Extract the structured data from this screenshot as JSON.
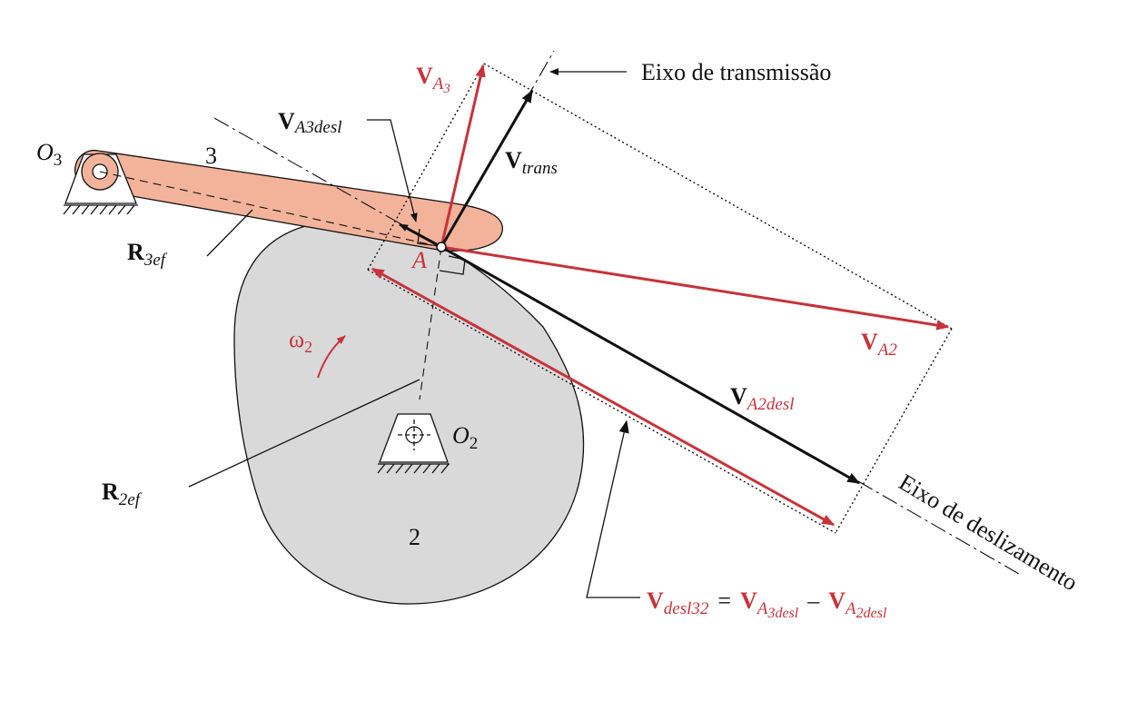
{
  "labels": {
    "va3_main": "V",
    "va3_sub": "A",
    "va3_subsub": "3",
    "eixo_trans": "Eixo de transmissão",
    "va3desl_main": "V",
    "va3desl_sub": "A",
    "va3desl_subsub": "3desl",
    "o3_main": "O",
    "o3_sub": "3",
    "link3": "3",
    "vtrans_main": "V",
    "vtrans_sub": "trans",
    "r3ef_main": "R",
    "r3ef_sub": "3ef",
    "point_a": "A",
    "va2_main": "V",
    "va2_sub": "A2",
    "omega_main": "ω",
    "omega_sub": "2",
    "va2desl_main": "V",
    "va2desl_sub": "A2desl",
    "o2_main": "O",
    "o2_sub": "2",
    "r2ef_main": "R",
    "r2ef_sub": "2ef",
    "cam_label": "2",
    "eixo_desl": "Eixo de deslizamento",
    "eq_v1": "V",
    "eq_v1_sub": "desl32",
    "eq_equals": "=",
    "eq_v2": "V",
    "eq_v2_sub": "A",
    "eq_v2_subsub": "3desl",
    "eq_minus": "–",
    "eq_v3": "V",
    "eq_v3_sub": "A",
    "eq_v3_subsub": "2desl"
  },
  "colors": {
    "red": "#c8323a",
    "black": "#111111",
    "cam_fill": "#d9d9d9",
    "follower_fill": "#f2b39a"
  }
}
